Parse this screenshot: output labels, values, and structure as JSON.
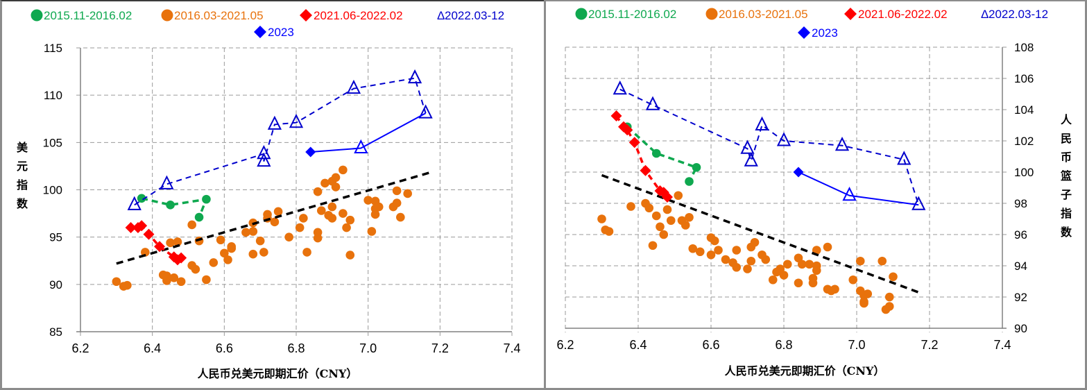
{
  "chart_data": [
    {
      "type": "scatter",
      "title": "",
      "xlabel": "人民币兑美元即期汇价（CNY）",
      "ylabel": "美元指数",
      "xlim": [
        6.2,
        7.4
      ],
      "ylim": [
        85,
        115
      ],
      "xticks": [
        "6.2",
        "6.4",
        "6.6",
        "6.8",
        "7.0",
        "7.2",
        "7.4"
      ],
      "yticks": [
        "85",
        "90",
        "95",
        "100",
        "105",
        "110",
        "115"
      ],
      "y_axis_side": "left",
      "grid": true,
      "legend": [
        "●2015.11-2016.02",
        "●2016.03-2021.05",
        "◆2021.06-2022.02",
        "Δ2022.03-12",
        "◆2023"
      ],
      "legend_position": "top",
      "series": [
        {
          "name": "2015.11-2016.02",
          "marker": "circle",
          "color": "#0fa84f",
          "line": "dashed",
          "points": [
            [
              6.37,
              99.1
            ],
            [
              6.45,
              98.4
            ],
            [
              6.55,
              99.0
            ],
            [
              6.53,
              97.1
            ]
          ]
        },
        {
          "name": "2016.03-2021.05",
          "marker": "circle",
          "color": "#e8720c",
          "line": "none",
          "points": [
            [
              6.3,
              90.3
            ],
            [
              6.32,
              89.8
            ],
            [
              6.33,
              89.9
            ],
            [
              6.38,
              93.4
            ],
            [
              6.43,
              91.0
            ],
            [
              6.44,
              90.4
            ],
            [
              6.44,
              90.9
            ],
            [
              6.45,
              94.4
            ],
            [
              6.46,
              90.7
            ],
            [
              6.47,
              94.5
            ],
            [
              6.48,
              90.3
            ],
            [
              6.51,
              96.3
            ],
            [
              6.51,
              92.0
            ],
            [
              6.52,
              91.6
            ],
            [
              6.53,
              94.6
            ],
            [
              6.55,
              90.5
            ],
            [
              6.57,
              92.3
            ],
            [
              6.59,
              94.7
            ],
            [
              6.6,
              93.3
            ],
            [
              6.61,
              92.6
            ],
            [
              6.62,
              93.8
            ],
            [
              6.62,
              94.0
            ],
            [
              6.66,
              95.5
            ],
            [
              6.68,
              95.6
            ],
            [
              6.68,
              93.2
            ],
            [
              6.68,
              96.5
            ],
            [
              6.7,
              94.6
            ],
            [
              6.71,
              93.4
            ],
            [
              6.72,
              97.0
            ],
            [
              6.72,
              97.4
            ],
            [
              6.74,
              96.6
            ],
            [
              6.75,
              97.7
            ],
            [
              6.78,
              95.0
            ],
            [
              6.81,
              96.0
            ],
            [
              6.82,
              97.0
            ],
            [
              6.83,
              93.4
            ],
            [
              6.86,
              99.8
            ],
            [
              6.87,
              97.8
            ],
            [
              6.86,
              95.5
            ],
            [
              6.86,
              94.9
            ],
            [
              6.88,
              100.7
            ],
            [
              6.89,
              97.3
            ],
            [
              6.9,
              98.2
            ],
            [
              6.9,
              100.9
            ],
            [
              6.9,
              97.0
            ],
            [
              6.91,
              101.3
            ],
            [
              6.91,
              100.3
            ],
            [
              6.93,
              102.1
            ],
            [
              6.93,
              97.5
            ],
            [
              6.94,
              96.0
            ],
            [
              6.95,
              96.8
            ],
            [
              6.95,
              93.1
            ],
            [
              7.0,
              98.9
            ],
            [
              7.02,
              98.8
            ],
            [
              7.02,
              98.0
            ],
            [
              7.02,
              97.4
            ],
            [
              7.03,
              98.2
            ],
            [
              7.01,
              95.6
            ],
            [
              7.07,
              98.2
            ],
            [
              7.08,
              98.6
            ],
            [
              7.08,
              99.9
            ],
            [
              7.09,
              97.1
            ],
            [
              7.11,
              99.6
            ]
          ]
        },
        {
          "name": "2021.06-2022.02",
          "marker": "diamond",
          "color": "#ff0000",
          "line": "dashed",
          "points": [
            [
              6.34,
              96.0
            ],
            [
              6.36,
              96.0
            ],
            [
              6.37,
              96.2
            ],
            [
              6.39,
              95.3
            ],
            [
              6.42,
              94.0
            ],
            [
              6.46,
              92.9
            ],
            [
              6.47,
              92.6
            ],
            [
              6.48,
              92.8
            ]
          ]
        },
        {
          "name": "2022.03-12",
          "marker": "triangle",
          "color": "#0000cc",
          "line": "dashed",
          "points": [
            [
              6.35,
              98.4
            ],
            [
              6.44,
              100.6
            ],
            [
              6.71,
              103.8
            ],
            [
              6.71,
              103.0
            ],
            [
              6.74,
              106.9
            ],
            [
              6.8,
              107.1
            ],
            [
              6.96,
              110.7
            ],
            [
              7.13,
              111.8
            ],
            [
              7.16,
              108.1
            ]
          ]
        },
        {
          "name": "2023",
          "marker": "diamond+triangle",
          "color": "#0000ff",
          "line": "solid",
          "points": [
            [
              6.84,
              104.0
            ],
            [
              6.98,
              104.4
            ],
            [
              7.16,
              108.1
            ]
          ]
        },
        {
          "name": "trend",
          "marker": "none",
          "color": "#000000",
          "line": "dashed",
          "points": [
            [
              6.3,
              92.2
            ],
            [
              7.17,
              101.8
            ]
          ]
        }
      ]
    },
    {
      "type": "scatter",
      "title": "",
      "xlabel": "人民币兑美元即期汇价（CNY）",
      "ylabel": "人民币篮子指数",
      "xlim": [
        6.2,
        7.4
      ],
      "ylim": [
        90,
        108
      ],
      "xticks": [
        "6.2",
        "6.4",
        "6.6",
        "6.8",
        "7.0",
        "7.2",
        "7.4"
      ],
      "yticks": [
        "90",
        "92",
        "94",
        "96",
        "98",
        "100",
        "102",
        "104",
        "106",
        "108"
      ],
      "y_axis_side": "right",
      "grid": true,
      "legend": [
        "●2015.11-2016.02",
        "●2016.03-2021.05",
        "◆2021.06-2022.02",
        "Δ2022.03-12",
        "◆2023"
      ],
      "legend_position": "top",
      "series": [
        {
          "name": "2015.11-2016.02",
          "marker": "circle",
          "color": "#0fa84f",
          "line": "dashed",
          "points": [
            [
              6.37,
              102.9
            ],
            [
              6.45,
              101.2
            ],
            [
              6.56,
              100.3
            ],
            [
              6.54,
              99.4
            ]
          ]
        },
        {
          "name": "2016.03-2021.05",
          "marker": "circle",
          "color": "#e8720c",
          "line": "none",
          "points": [
            [
              6.3,
              97.0
            ],
            [
              6.31,
              96.3
            ],
            [
              6.32,
              96.2
            ],
            [
              6.38,
              97.8
            ],
            [
              6.42,
              98.0
            ],
            [
              6.43,
              97.7
            ],
            [
              6.44,
              95.3
            ],
            [
              6.45,
              97.2
            ],
            [
              6.46,
              96.5
            ],
            [
              6.47,
              96.0
            ],
            [
              6.48,
              97.6
            ],
            [
              6.49,
              96.9
            ],
            [
              6.51,
              98.5
            ],
            [
              6.52,
              96.9
            ],
            [
              6.53,
              96.6
            ],
            [
              6.54,
              97.1
            ],
            [
              6.55,
              95.1
            ],
            [
              6.57,
              94.9
            ],
            [
              6.6,
              95.8
            ],
            [
              6.61,
              95.6
            ],
            [
              6.6,
              94.7
            ],
            [
              6.62,
              95.0
            ],
            [
              6.64,
              94.4
            ],
            [
              6.66,
              94.2
            ],
            [
              6.67,
              95.0
            ],
            [
              6.67,
              93.9
            ],
            [
              6.71,
              94.3
            ],
            [
              6.7,
              93.8
            ],
            [
              6.71,
              95.2
            ],
            [
              6.72,
              95.5
            ],
            [
              6.74,
              94.7
            ],
            [
              6.75,
              94.4
            ],
            [
              6.77,
              93.1
            ],
            [
              6.78,
              93.6
            ],
            [
              6.79,
              93.8
            ],
            [
              6.8,
              93.4
            ],
            [
              6.81,
              94.1
            ],
            [
              6.84,
              94.5
            ],
            [
              6.84,
              92.9
            ],
            [
              6.85,
              94.1
            ],
            [
              6.87,
              94.1
            ],
            [
              6.88,
              93.2
            ],
            [
              6.88,
              92.9
            ],
            [
              6.89,
              93.7
            ],
            [
              6.89,
              94.0
            ],
            [
              6.89,
              95.0
            ],
            [
              6.92,
              95.2
            ],
            [
              6.92,
              92.5
            ],
            [
              6.93,
              92.4
            ],
            [
              6.94,
              92.5
            ],
            [
              6.99,
              93.1
            ],
            [
              7.01,
              94.3
            ],
            [
              7.01,
              92.4
            ],
            [
              7.02,
              92.1
            ],
            [
              7.03,
              92.2
            ],
            [
              7.02,
              91.7
            ],
            [
              7.02,
              91.6
            ],
            [
              7.07,
              94.3
            ],
            [
              7.08,
              91.2
            ],
            [
              7.09,
              91.4
            ],
            [
              7.09,
              92.0
            ],
            [
              7.1,
              93.3
            ]
          ]
        },
        {
          "name": "2021.06-2022.02",
          "marker": "diamond",
          "color": "#ff0000",
          "line": "dashed",
          "points": [
            [
              6.34,
              103.6
            ],
            [
              6.36,
              102.9
            ],
            [
              6.37,
              102.7
            ],
            [
              6.39,
              101.9
            ],
            [
              6.42,
              100.1
            ],
            [
              6.46,
              98.8
            ],
            [
              6.47,
              98.7
            ],
            [
              6.48,
              98.4
            ]
          ]
        },
        {
          "name": "2022.03-12",
          "marker": "triangle",
          "color": "#0000cc",
          "line": "dashed",
          "points": [
            [
              6.35,
              105.3
            ],
            [
              6.44,
              104.3
            ],
            [
              6.7,
              101.5
            ],
            [
              6.71,
              100.7
            ],
            [
              6.74,
              103.0
            ],
            [
              6.8,
              102.0
            ],
            [
              6.96,
              101.7
            ],
            [
              7.13,
              100.8
            ],
            [
              7.17,
              97.9
            ]
          ]
        },
        {
          "name": "2023",
          "marker": "diamond+triangle",
          "color": "#0000ff",
          "line": "solid",
          "points": [
            [
              6.84,
              100.0
            ],
            [
              6.98,
              98.5
            ],
            [
              7.17,
              97.9
            ]
          ]
        },
        {
          "name": "trend",
          "marker": "none",
          "color": "#000000",
          "line": "dashed",
          "points": [
            [
              6.3,
              99.8
            ],
            [
              7.17,
              92.3
            ]
          ]
        }
      ]
    }
  ],
  "legend": {
    "items": [
      {
        "symbol": "●",
        "label": "2015.11-2016.02",
        "color": "#0fa84f"
      },
      {
        "symbol": "●",
        "label": "2016.03-2021.05",
        "color": "#e8720c"
      },
      {
        "symbol": "◆",
        "label": "2021.06-2022.02",
        "color": "#ff0000"
      },
      {
        "symbol": "Δ",
        "label": "2022.03-12",
        "color": "#0000cc"
      },
      {
        "symbol": "◆",
        "label": "2023",
        "color": "#0000ff"
      }
    ]
  }
}
